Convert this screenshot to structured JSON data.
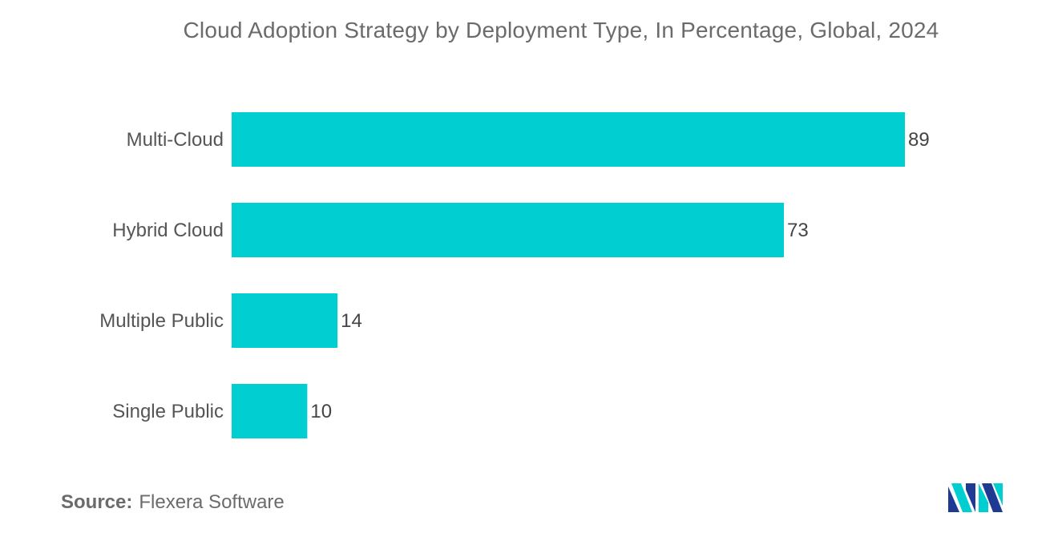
{
  "chart_data": {
    "type": "bar",
    "orientation": "horizontal",
    "title": "Cloud Adoption Strategy by Deployment Type, In Percentage, Global, 2024",
    "categories": [
      "Multi-Cloud",
      "Hybrid Cloud",
      "Multiple Public",
      "Single Public"
    ],
    "values": [
      89,
      73,
      14,
      10
    ],
    "xlim": [
      0,
      89
    ],
    "xlabel": "",
    "ylabel": "",
    "grid": false,
    "legend": "none",
    "bar_color": "#00CED1"
  },
  "source": {
    "label": "Source:",
    "text": "Flexera Software"
  },
  "logo": {
    "icon": "mordor-intelligence-logo-icon",
    "colors": [
      "#1F3A93",
      "#00CED1"
    ]
  }
}
